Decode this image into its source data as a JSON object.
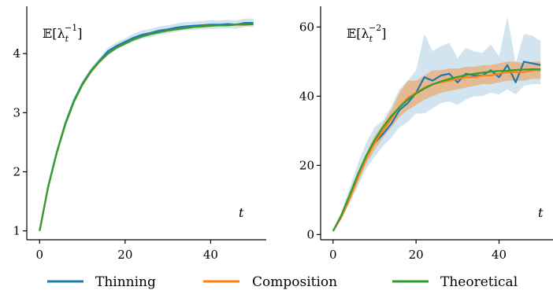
{
  "chart_data": [
    {
      "type": "line",
      "annotation": "𝔼[λ_t^{-1}]",
      "annotation_main": "𝔼[λ",
      "annotation_sub": "t",
      "annotation_sup": "−1",
      "annotation_close": "]",
      "xlabel": "t",
      "xlim": [
        -3,
        53
      ],
      "ylim": [
        0.85,
        4.8
      ],
      "xticks": [
        0,
        20,
        40
      ],
      "yticks": [
        1,
        2,
        3,
        4
      ],
      "legend_position": "bottom",
      "grid": false,
      "series": [
        {
          "name": "Thinning",
          "color": "#1f77b4",
          "x": [
            0,
            2,
            4,
            6,
            8,
            10,
            12,
            14,
            16,
            18,
            20,
            22,
            24,
            26,
            28,
            30,
            32,
            34,
            36,
            38,
            40,
            42,
            44,
            46,
            48,
            50
          ],
          "values": [
            1.0,
            1.75,
            2.33,
            2.82,
            3.2,
            3.49,
            3.71,
            3.88,
            4.04,
            4.13,
            4.2,
            4.27,
            4.32,
            4.35,
            4.39,
            4.41,
            4.44,
            4.46,
            4.47,
            4.48,
            4.49,
            4.49,
            4.5,
            4.49,
            4.52,
            4.52
          ],
          "band_lower": [
            1.0,
            1.72,
            2.29,
            2.77,
            3.15,
            3.44,
            3.66,
            3.83,
            3.98,
            4.07,
            4.14,
            4.2,
            4.25,
            4.28,
            4.32,
            4.34,
            4.37,
            4.39,
            4.4,
            4.41,
            4.42,
            4.42,
            4.43,
            4.42,
            4.45,
            4.45
          ],
          "band_upper": [
            1.0,
            1.78,
            2.37,
            2.87,
            3.25,
            3.54,
            3.76,
            3.93,
            4.1,
            4.19,
            4.26,
            4.34,
            4.39,
            4.42,
            4.46,
            4.48,
            4.51,
            4.53,
            4.54,
            4.55,
            4.56,
            4.56,
            4.57,
            4.56,
            4.59,
            4.59
          ]
        },
        {
          "name": "Composition",
          "color": "#ff7f0e",
          "x": [
            0,
            2,
            4,
            6,
            8,
            10,
            12,
            14,
            16,
            18,
            20,
            22,
            24,
            26,
            28,
            30,
            32,
            34,
            36,
            38,
            40,
            42,
            44,
            46,
            48,
            50
          ],
          "values": [
            1.0,
            1.74,
            2.32,
            2.8,
            3.18,
            3.47,
            3.69,
            3.86,
            4.0,
            4.1,
            4.17,
            4.24,
            4.29,
            4.33,
            4.36,
            4.39,
            4.41,
            4.43,
            4.45,
            4.46,
            4.47,
            4.48,
            4.48,
            4.49,
            4.49,
            4.5
          ],
          "band_lower": [
            1.0,
            1.72,
            2.3,
            2.78,
            3.16,
            3.45,
            3.67,
            3.84,
            3.98,
            4.08,
            4.15,
            4.22,
            4.27,
            4.31,
            4.34,
            4.37,
            4.39,
            4.41,
            4.43,
            4.44,
            4.45,
            4.46,
            4.46,
            4.47,
            4.47,
            4.48
          ],
          "band_upper": [
            1.0,
            1.76,
            2.34,
            2.82,
            3.2,
            3.49,
            3.71,
            3.88,
            4.02,
            4.12,
            4.19,
            4.26,
            4.31,
            4.35,
            4.38,
            4.41,
            4.43,
            4.45,
            4.47,
            4.48,
            4.49,
            4.5,
            4.5,
            4.51,
            4.51,
            4.52
          ]
        },
        {
          "name": "Theoretical",
          "color": "#2ca02c",
          "x": [
            0,
            2,
            4,
            6,
            8,
            10,
            12,
            14,
            16,
            18,
            20,
            22,
            24,
            26,
            28,
            30,
            32,
            34,
            36,
            38,
            40,
            42,
            44,
            46,
            48,
            50
          ],
          "values": [
            1.0,
            1.74,
            2.32,
            2.8,
            3.18,
            3.48,
            3.7,
            3.87,
            4.0,
            4.1,
            4.17,
            4.24,
            4.29,
            4.33,
            4.36,
            4.39,
            4.41,
            4.43,
            4.45,
            4.46,
            4.47,
            4.48,
            4.48,
            4.49,
            4.49,
            4.5
          ]
        }
      ]
    },
    {
      "type": "line",
      "annotation": "𝔼[λ_t^{-2}]",
      "annotation_main": "𝔼[λ",
      "annotation_sub": "t",
      "annotation_sup": "−2",
      "annotation_close": "]",
      "xlabel": "t",
      "xlim": [
        -3,
        53
      ],
      "ylim": [
        -1.5,
        66
      ],
      "xticks": [
        0,
        20,
        40
      ],
      "yticks": [
        0,
        20,
        40,
        60
      ],
      "legend_position": "bottom",
      "grid": false,
      "series": [
        {
          "name": "Thinning",
          "color": "#1f77b4",
          "x": [
            0,
            2,
            4,
            6,
            8,
            10,
            12,
            14,
            16,
            18,
            20,
            22,
            24,
            26,
            28,
            30,
            32,
            34,
            36,
            38,
            40,
            42,
            44,
            46,
            48,
            50
          ],
          "values": [
            1.0,
            5.5,
            11.0,
            17.0,
            22.5,
            26.5,
            29.0,
            32.0,
            36.0,
            38.0,
            41.0,
            45.5,
            44.5,
            46.0,
            46.5,
            44.0,
            46.5,
            46.0,
            46.0,
            47.5,
            45.5,
            49.0,
            44.0,
            50.0,
            49.5,
            49.0
          ],
          "band_lower": [
            1.0,
            4.5,
            9.0,
            14.0,
            19.0,
            22.5,
            25.5,
            28.0,
            31.0,
            32.5,
            35.0,
            35.0,
            36.5,
            38.0,
            38.5,
            37.5,
            39.0,
            40.0,
            40.0,
            41.0,
            40.5,
            42.0,
            40.5,
            43.0,
            43.5,
            43.5
          ],
          "band_upper": [
            1.0,
            6.5,
            13.5,
            20.5,
            26.5,
            31.0,
            33.0,
            37.0,
            42.0,
            44.5,
            47.5,
            58.0,
            53.0,
            54.5,
            55.5,
            51.0,
            54.0,
            53.0,
            52.5,
            55.0,
            51.5,
            63.0,
            49.5,
            58.0,
            57.5,
            56.0
          ]
        },
        {
          "name": "Composition",
          "color": "#ff7f0e",
          "x": [
            0,
            2,
            4,
            6,
            8,
            10,
            12,
            14,
            16,
            18,
            20,
            22,
            24,
            26,
            28,
            30,
            32,
            34,
            36,
            38,
            40,
            42,
            44,
            46,
            48,
            50
          ],
          "values": [
            1.0,
            5.0,
            10.5,
            16.5,
            22.0,
            26.5,
            30.0,
            33.5,
            37.0,
            39.5,
            41.0,
            42.5,
            43.5,
            44.0,
            44.5,
            45.0,
            45.5,
            45.5,
            46.0,
            46.0,
            46.5,
            47.0,
            47.0,
            47.0,
            47.5,
            47.5
          ],
          "band_lower": [
            1.0,
            4.5,
            9.5,
            15.0,
            20.5,
            24.5,
            28.0,
            31.0,
            34.0,
            36.0,
            37.5,
            39.0,
            40.0,
            41.0,
            41.5,
            42.0,
            42.5,
            43.0,
            43.5,
            43.5,
            44.0,
            44.5,
            44.5,
            44.5,
            45.0,
            45.0
          ],
          "band_upper": [
            1.0,
            5.5,
            11.5,
            18.0,
            23.5,
            28.5,
            32.0,
            36.0,
            41.0,
            44.5,
            44.5,
            46.0,
            47.5,
            47.5,
            48.0,
            48.0,
            48.5,
            48.5,
            49.0,
            49.0,
            49.5,
            50.0,
            50.0,
            49.5,
            50.0,
            50.0
          ]
        },
        {
          "name": "Theoretical",
          "color": "#2ca02c",
          "x": [
            0,
            2,
            4,
            6,
            8,
            10,
            12,
            14,
            16,
            18,
            20,
            22,
            24,
            26,
            28,
            30,
            32,
            34,
            36,
            38,
            40,
            42,
            44,
            46,
            48,
            50
          ],
          "values": [
            1.0,
            5.6,
            11.5,
            17.5,
            22.8,
            27.3,
            31.0,
            34.2,
            36.8,
            39.0,
            40.8,
            42.2,
            43.4,
            44.3,
            45.0,
            45.6,
            46.1,
            46.5,
            46.8,
            47.1,
            47.3,
            47.4,
            47.6,
            47.7,
            47.8,
            47.8
          ]
        }
      ]
    }
  ],
  "legend": {
    "position": "bottom",
    "items": [
      {
        "label": "Thinning",
        "color": "#1f77b4"
      },
      {
        "label": "Composition",
        "color": "#ff7f0e"
      },
      {
        "label": "Theoretical",
        "color": "#2ca02c"
      }
    ]
  }
}
